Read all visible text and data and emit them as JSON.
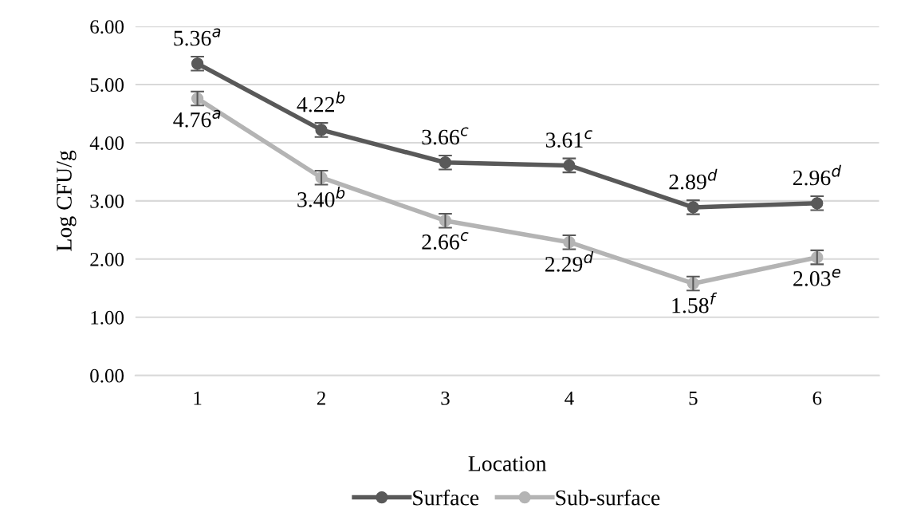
{
  "chart_data": {
    "type": "line",
    "xlabel": "Location",
    "ylabel": "Log CFU/g",
    "categories": [
      "1",
      "2",
      "3",
      "4",
      "5",
      "6"
    ],
    "ylim": [
      0,
      6
    ],
    "yticks": [
      {
        "value": 0,
        "label": "0.00"
      },
      {
        "value": 1,
        "label": "1.00"
      },
      {
        "value": 2,
        "label": "2.00"
      },
      {
        "value": 3,
        "label": "3.00"
      },
      {
        "value": 4,
        "label": "4.00"
      },
      {
        "value": 5,
        "label": "5.00"
      },
      {
        "value": 6,
        "label": "6.00"
      }
    ],
    "grid": "y",
    "legend": "bottom",
    "marker": "circle",
    "line_style": "solid",
    "series": [
      {
        "name": "Surface",
        "color": "#595959",
        "values": [
          5.36,
          4.22,
          3.66,
          3.61,
          2.89,
          2.96
        ],
        "errors": [
          0.12,
          0.12,
          0.12,
          0.12,
          0.12,
          0.12
        ],
        "value_labels": [
          "5.36$^{a}$",
          "4.22$^{b}$",
          "3.66$^{c}$",
          "3.61$^{c}$",
          "2.89$^{d}$",
          "2.96$^{d}$"
        ]
      },
      {
        "name": "Sub-surface",
        "color": "#b4b4b4",
        "values": [
          4.76,
          3.4,
          2.66,
          2.29,
          1.58,
          2.03
        ],
        "errors": [
          0.12,
          0.12,
          0.12,
          0.12,
          0.12,
          0.12
        ],
        "value_labels": [
          "4.76$^{a}$",
          "3.40$^{b}$",
          "2.66$^{c}$",
          "2.29$^{d}$",
          "1.58$^{f}$",
          "2.03$^{e}$"
        ]
      }
    ]
  }
}
